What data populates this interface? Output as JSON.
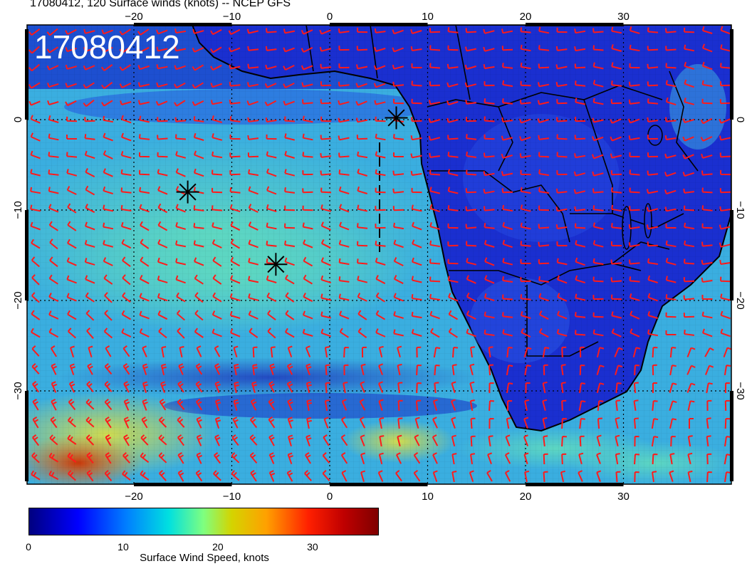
{
  "header": {
    "title": "17080412, 120 Surface winds (knots) -- NCEP GFS"
  },
  "map": {
    "stamp": "17080412",
    "lon_ticks": [
      {
        "value": -20,
        "label": "−20"
      },
      {
        "value": -10,
        "label": "−10"
      },
      {
        "value": 0,
        "label": "0"
      },
      {
        "value": 10,
        "label": "10"
      },
      {
        "value": 20,
        "label": "20"
      },
      {
        "value": 30,
        "label": "30"
      }
    ],
    "lat_ticks": [
      {
        "value": 0,
        "label": "0"
      },
      {
        "value": -10,
        "label": "−10"
      },
      {
        "value": -20,
        "label": "−20"
      },
      {
        "value": -30,
        "label": "−30"
      }
    ],
    "markers": [
      {
        "lon": 6.8,
        "lat": 0.2
      },
      {
        "lon": -14.5,
        "lat": -8.0
      },
      {
        "lon": -5.5,
        "lat": -16.0
      }
    ],
    "colors": {
      "wind_barb": "#ff1a1a",
      "ocean_fast": "#3cc8c8",
      "land": "#1a33d6"
    }
  },
  "colorbar": {
    "title": "Surface Wind Speed, knots",
    "ticks": [
      {
        "value": 0,
        "label": "0"
      },
      {
        "value": 10,
        "label": "10"
      },
      {
        "value": 20,
        "label": "20"
      },
      {
        "value": 30,
        "label": "30"
      }
    ],
    "range": [
      0,
      37
    ]
  }
}
